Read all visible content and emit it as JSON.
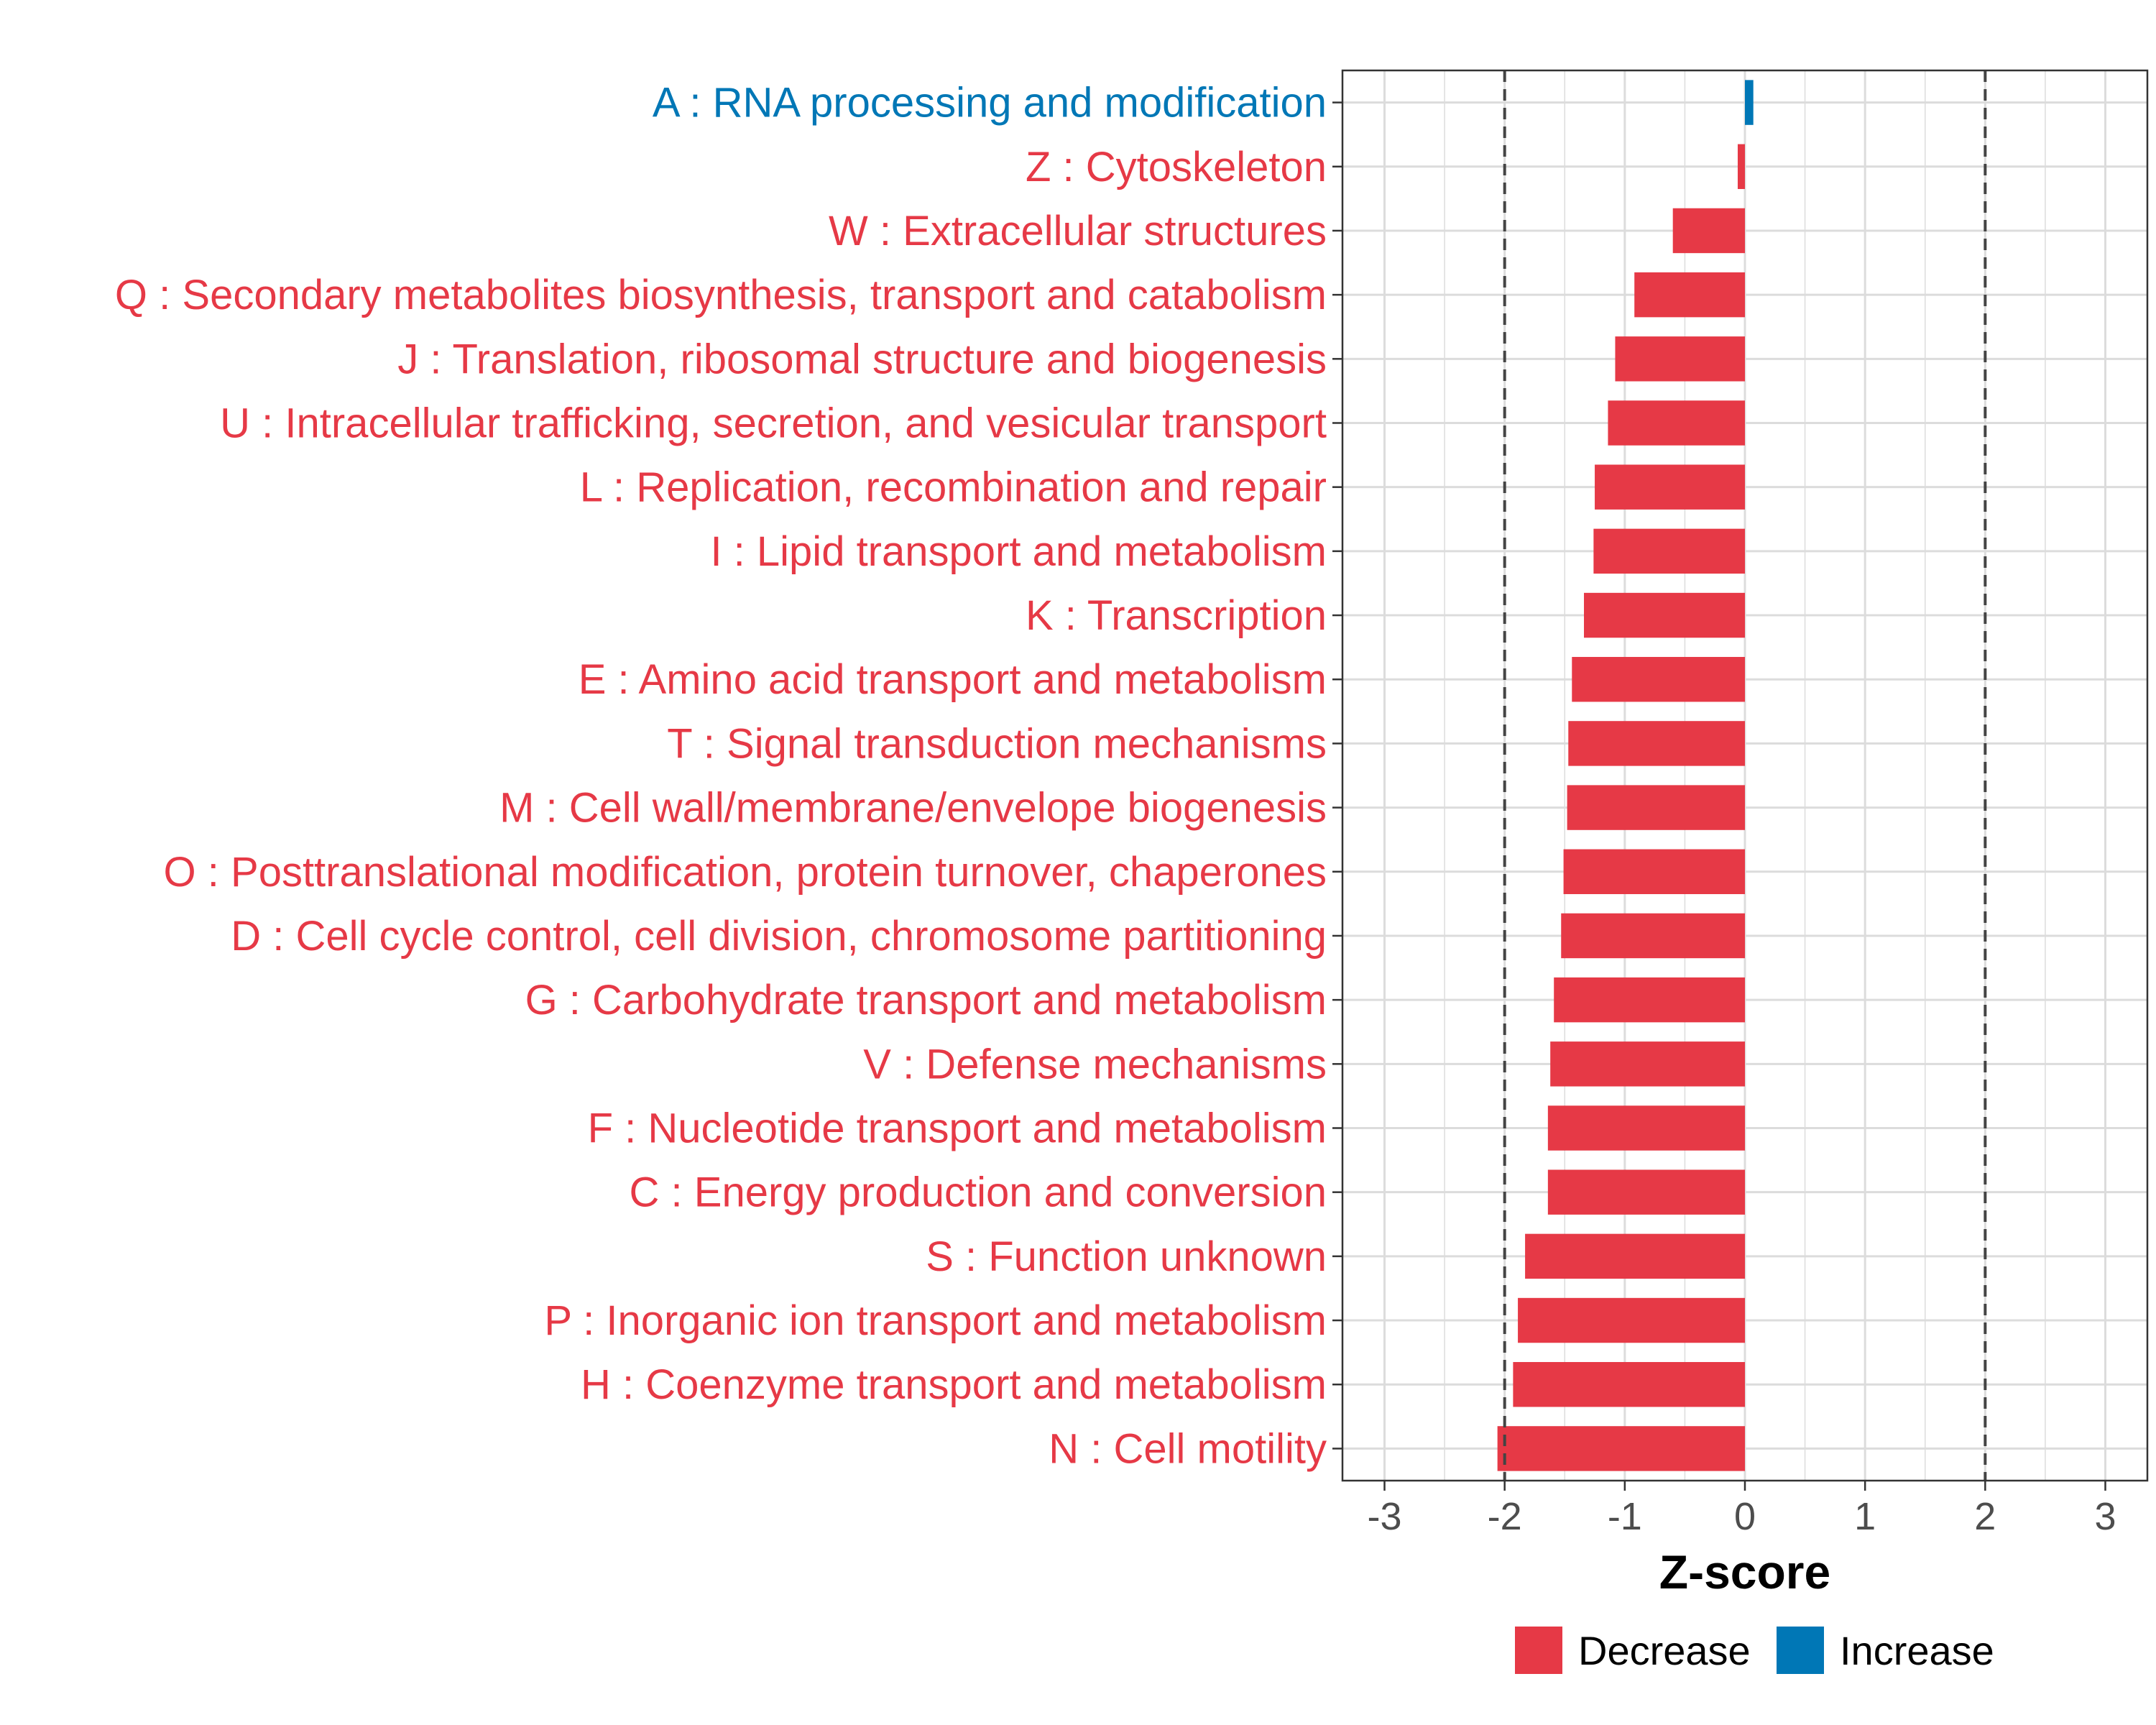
{
  "chart_data": {
    "type": "bar",
    "orientation": "horizontal",
    "title": "",
    "xlabel": "Z-score",
    "ylabel": "",
    "xlim": [
      -3.35,
      3.35
    ],
    "xticks": [
      -3,
      -2,
      -1,
      0,
      1,
      2,
      3
    ],
    "xtick_labels": [
      "-3",
      "-2",
      "-1",
      "0",
      "1",
      "2",
      "3"
    ],
    "reference_lines": [
      -2,
      2
    ],
    "grid": true,
    "legend_position": "bottom",
    "colors": {
      "Decrease": "#e63946",
      "Increase": "#0077b6"
    },
    "legend": [
      {
        "label": "Decrease",
        "color": "#e63946"
      },
      {
        "label": "Increase",
        "color": "#0077b6"
      }
    ],
    "categories": [
      {
        "label": "A : RNA processing and modification",
        "value": 0.07,
        "direction": "Increase"
      },
      {
        "label": "Z : Cytoskeleton",
        "value": -0.06,
        "direction": "Decrease"
      },
      {
        "label": "W : Extracellular structures",
        "value": -0.6,
        "direction": "Decrease"
      },
      {
        "label": "Q : Secondary metabolites biosynthesis, transport and catabolism",
        "value": -0.92,
        "direction": "Decrease"
      },
      {
        "label": "J : Translation, ribosomal structure and biogenesis",
        "value": -1.08,
        "direction": "Decrease"
      },
      {
        "label": "U : Intracellular trafficking, secretion, and vesicular transport",
        "value": -1.14,
        "direction": "Decrease"
      },
      {
        "label": "L : Replication, recombination and repair",
        "value": -1.25,
        "direction": "Decrease"
      },
      {
        "label": "I : Lipid transport and metabolism",
        "value": -1.26,
        "direction": "Decrease"
      },
      {
        "label": "K : Transcription",
        "value": -1.34,
        "direction": "Decrease"
      },
      {
        "label": "E : Amino acid transport and metabolism",
        "value": -1.44,
        "direction": "Decrease"
      },
      {
        "label": "T : Signal transduction mechanisms",
        "value": -1.47,
        "direction": "Decrease"
      },
      {
        "label": "M : Cell wall/membrane/envelope biogenesis",
        "value": -1.48,
        "direction": "Decrease"
      },
      {
        "label": "O : Posttranslational modification, protein turnover, chaperones",
        "value": -1.51,
        "direction": "Decrease"
      },
      {
        "label": "D : Cell cycle control, cell division, chromosome partitioning",
        "value": -1.53,
        "direction": "Decrease"
      },
      {
        "label": "G : Carbohydrate transport and metabolism",
        "value": -1.59,
        "direction": "Decrease"
      },
      {
        "label": "V : Defense mechanisms",
        "value": -1.62,
        "direction": "Decrease"
      },
      {
        "label": "F : Nucleotide transport and metabolism",
        "value": -1.64,
        "direction": "Decrease"
      },
      {
        "label": "C : Energy production and conversion",
        "value": -1.64,
        "direction": "Decrease"
      },
      {
        "label": "S : Function unknown",
        "value": -1.83,
        "direction": "Decrease"
      },
      {
        "label": "P : Inorganic ion transport and metabolism",
        "value": -1.89,
        "direction": "Decrease"
      },
      {
        "label": "H : Coenzyme transport and metabolism",
        "value": -1.93,
        "direction": "Decrease"
      },
      {
        "label": "N : Cell motility",
        "value": -2.06,
        "direction": "Decrease"
      }
    ]
  }
}
